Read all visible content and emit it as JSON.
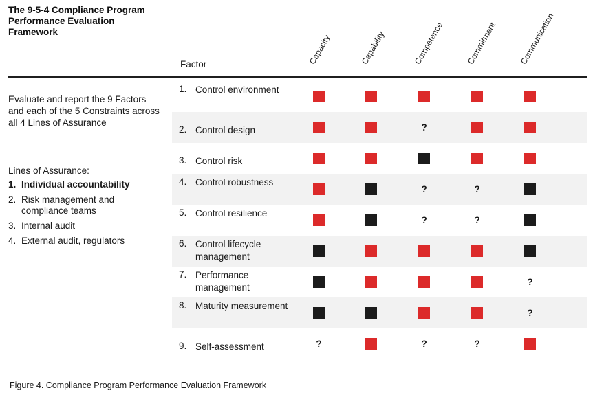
{
  "title": "The 9-5-4 Compliance Program Performance Evaluation Framework",
  "factor_header": "Factor",
  "columns": [
    "Capacity",
    "Capability",
    "Competence",
    "Commitment",
    "Communication"
  ],
  "description": "Evaluate and report the 9 Factors and each of the 5 Constraints across all 4 Lines of Assurance",
  "lines_of_assurance": {
    "title": "Lines of Assurance:",
    "items": [
      {
        "num": "1.",
        "label": "Individual accountability"
      },
      {
        "num": "2.",
        "label": "Risk management and compliance teams"
      },
      {
        "num": "3.",
        "label": "Internal audit"
      },
      {
        "num": "4.",
        "label": "External audit, regulators"
      }
    ]
  },
  "rows": [
    {
      "num": "1.",
      "label": "Control environment",
      "cells": [
        "red",
        "red",
        "red",
        "red",
        "red"
      ]
    },
    {
      "num": "2.",
      "label": "Control design",
      "cells": [
        "red",
        "red",
        "?",
        "red",
        "red"
      ]
    },
    {
      "num": "3.",
      "label": "Control risk",
      "cells": [
        "red",
        "red",
        "black",
        "red",
        "red"
      ]
    },
    {
      "num": "4.",
      "label": "Control robustness",
      "cells": [
        "red",
        "black",
        "?",
        "?",
        "black"
      ]
    },
    {
      "num": "5.",
      "label": "Control resilience",
      "cells": [
        "red",
        "black",
        "?",
        "?",
        "black"
      ]
    },
    {
      "num": "6.",
      "label": "Control lifecycle management",
      "cells": [
        "black",
        "red",
        "red",
        "red",
        "black"
      ]
    },
    {
      "num": "7.",
      "label": "Performance management",
      "cells": [
        "black",
        "red",
        "red",
        "red",
        "?"
      ]
    },
    {
      "num": "8.",
      "label": "Maturity measurement",
      "cells": [
        "black",
        "black",
        "red",
        "red",
        "?"
      ]
    },
    {
      "num": "9.",
      "label": "Self-assessment",
      "cells": [
        "?",
        "red",
        "?",
        "?",
        "red"
      ]
    }
  ],
  "colors": {
    "red": "#dc2a2a",
    "black": "#1c1c1c",
    "band": "#f2f2f2",
    "rule": "#1f1f1f"
  },
  "caption": "Figure 4. Compliance Program Performance Evaluation Framework"
}
